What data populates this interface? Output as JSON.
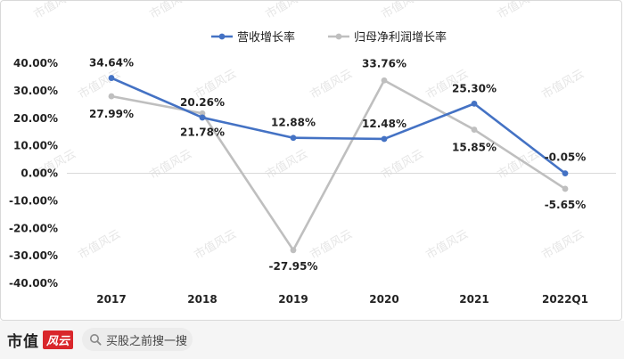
{
  "chart_data": {
    "type": "line",
    "categories": [
      "2017",
      "2018",
      "2019",
      "2020",
      "2021",
      "2022Q1"
    ],
    "series": [
      {
        "name": "营收增长率",
        "color": "#4472c4",
        "values": [
          34.64,
          20.26,
          12.88,
          12.48,
          25.3,
          -0.05
        ],
        "labels": [
          "34.64%",
          "20.26%",
          "12.88%",
          "12.48%",
          "25.30%",
          "-0.05%"
        ]
      },
      {
        "name": "归母净利润增长率",
        "color": "#bfbfbf",
        "values": [
          27.99,
          21.78,
          -27.95,
          33.76,
          15.85,
          -5.65
        ],
        "labels": [
          "27.99%",
          "21.78%",
          "-27.95%",
          "33.76%",
          "15.85%",
          "-5.65%"
        ]
      }
    ],
    "ylim": [
      -40,
      40
    ],
    "yticks": [
      "40.00%",
      "30.00%",
      "20.00%",
      "10.00%",
      "0.00%",
      "-10.00%",
      "-20.00%",
      "-30.00%",
      "-40.00%"
    ],
    "legend_position": "top",
    "grid": false
  },
  "footer": {
    "brand": "市值",
    "brand_logo": "风云",
    "search_icon": "search-icon",
    "search_text": "买股之前搜一搜"
  },
  "watermark": "市值风云"
}
